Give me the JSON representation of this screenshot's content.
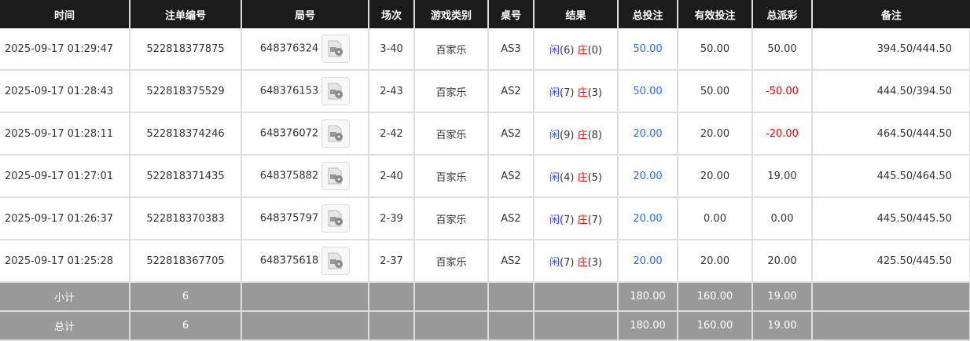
{
  "headers": [
    "时间",
    "注单编号",
    "局号",
    "场次",
    "游戏类别",
    "桌号",
    "结果",
    "总投注",
    "有效投注",
    "总派彩",
    "备注"
  ],
  "rows": [
    {
      "time": "2025-09-17 01:29:47",
      "bet_id": "522818377875",
      "round": "648376324",
      "session": "3-40",
      "game": "百家乐",
      "table": "AS3",
      "player_label": "闲",
      "player": "(6)",
      "banker_label": "庄",
      "banker": "(0)",
      "total_bet": "50.00",
      "valid_bet": "50.00",
      "payout": "50.00",
      "payout_negative": false,
      "note": "394.50/444.50"
    },
    {
      "time": "2025-09-17 01:28:43",
      "bet_id": "522818375529",
      "round": "648376153",
      "session": "2-43",
      "game": "百家乐",
      "table": "AS2",
      "player_label": "闲",
      "player": "(7)",
      "banker_label": "庄",
      "banker": "(3)",
      "total_bet": "50.00",
      "valid_bet": "50.00",
      "payout": "-50.00",
      "payout_negative": true,
      "note": "444.50/394.50"
    },
    {
      "time": "2025-09-17 01:28:11",
      "bet_id": "522818374246",
      "round": "648376072",
      "session": "2-42",
      "game": "百家乐",
      "table": "AS2",
      "player_label": "闲",
      "player": "(9)",
      "banker_label": "庄",
      "banker": "(8)",
      "total_bet": "20.00",
      "valid_bet": "20.00",
      "payout": "-20.00",
      "payout_negative": true,
      "note": "464.50/444.50"
    },
    {
      "time": "2025-09-17 01:27:01",
      "bet_id": "522818371435",
      "round": "648375882",
      "session": "2-40",
      "game": "百家乐",
      "table": "AS2",
      "player_label": "闲",
      "player": "(4)",
      "banker_label": "庄",
      "banker": "(5)",
      "total_bet": "20.00",
      "valid_bet": "20.00",
      "payout": "19.00",
      "payout_negative": false,
      "note": "445.50/464.50"
    },
    {
      "time": "2025-09-17 01:26:37",
      "bet_id": "522818370383",
      "round": "648375797",
      "session": "2-39",
      "game": "百家乐",
      "table": "AS2",
      "player_label": "闲",
      "player": "(7)",
      "banker_label": "庄",
      "banker": "(7)",
      "total_bet": "20.00",
      "valid_bet": "0.00",
      "payout": "0.00",
      "payout_negative": false,
      "note": "445.50/445.50"
    },
    {
      "time": "2025-09-17 01:25:28",
      "bet_id": "522818367705",
      "round": "648375618",
      "session": "2-37",
      "game": "百家乐",
      "table": "AS2",
      "player_label": "闲",
      "player": "(7)",
      "banker_label": "庄",
      "banker": "(3)",
      "total_bet": "20.00",
      "valid_bet": "20.00",
      "payout": "20.00",
      "payout_negative": false,
      "note": "425.50/445.50"
    }
  ],
  "footer": [
    {
      "label": "小计",
      "count": "6",
      "total_bet": "180.00",
      "valid_bet": "160.00",
      "payout": "19.00"
    },
    {
      "label": "总计",
      "count": "6",
      "total_bet": "180.00",
      "valid_bet": "160.00",
      "payout": "19.00"
    }
  ],
  "colors": {
    "header_bg": "#1b1b1b",
    "footer_bg": "#999999",
    "player": "#3355ee",
    "banker": "#ee0000",
    "total_bet": "#2a6cf0",
    "negative": "#ee0000"
  }
}
